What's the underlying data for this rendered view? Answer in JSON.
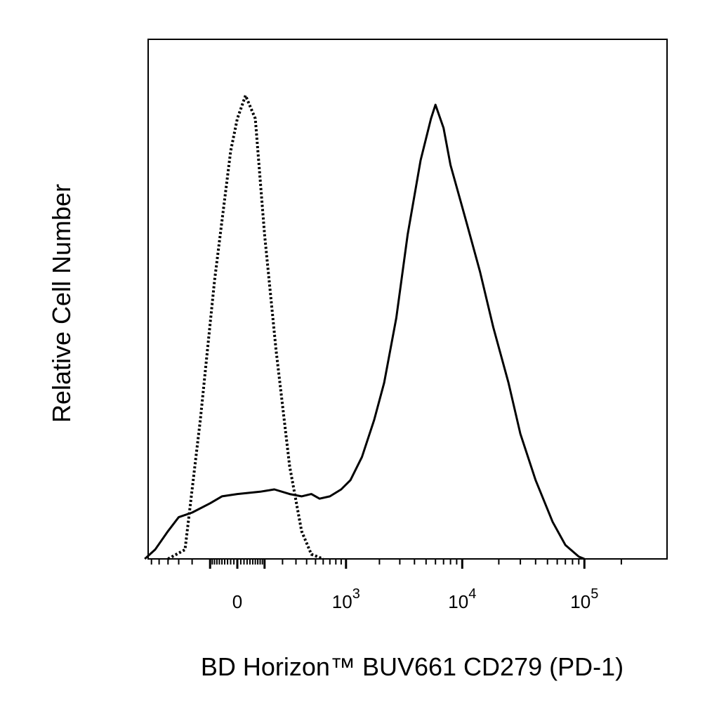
{
  "chart_data": {
    "type": "area",
    "xlabel": "BD Horizon™ BUV661 CD279 (PD-1)",
    "ylabel": "Relative Cell Number",
    "x_scale": "biexponential",
    "x_tick_labels": [
      {
        "base": "0",
        "exp": ""
      },
      {
        "base": "10",
        "exp": "3"
      },
      {
        "base": "10",
        "exp": "4"
      },
      {
        "base": "10",
        "exp": "5"
      }
    ],
    "grid": false,
    "legend": "none",
    "series": [
      {
        "line_style": "dotted",
        "points": [
          [
            -400,
            0
          ],
          [
            -250,
            0.02
          ],
          [
            -150,
            0.3
          ],
          [
            -80,
            0.6
          ],
          [
            -20,
            0.88
          ],
          [
            0,
            0.95
          ],
          [
            25,
            1.0
          ],
          [
            60,
            0.95
          ],
          [
            100,
            0.7
          ],
          [
            160,
            0.45
          ],
          [
            250,
            0.2
          ],
          [
            350,
            0.06
          ],
          [
            450,
            0.01
          ],
          [
            600,
            0
          ]
        ]
      },
      {
        "line_style": "solid",
        "points": [
          [
            -700,
            0
          ],
          [
            -550,
            0.02
          ],
          [
            -400,
            0.06
          ],
          [
            -300,
            0.09
          ],
          [
            -200,
            0.1
          ],
          [
            -100,
            0.12
          ],
          [
            -50,
            0.135
          ],
          [
            0,
            0.14
          ],
          [
            80,
            0.145
          ],
          [
            150,
            0.15
          ],
          [
            250,
            0.14
          ],
          [
            350,
            0.135
          ],
          [
            450,
            0.14
          ],
          [
            550,
            0.13
          ],
          [
            700,
            0.135
          ],
          [
            900,
            0.15
          ],
          [
            1100,
            0.17
          ],
          [
            1400,
            0.22
          ],
          [
            1800,
            0.3
          ],
          [
            2200,
            0.38
          ],
          [
            2800,
            0.52
          ],
          [
            3500,
            0.7
          ],
          [
            4500,
            0.86
          ],
          [
            5500,
            0.95
          ],
          [
            6000,
            0.98
          ],
          [
            7000,
            0.93
          ],
          [
            8000,
            0.85
          ],
          [
            9500,
            0.78
          ],
          [
            11000,
            0.72
          ],
          [
            14000,
            0.62
          ],
          [
            18000,
            0.5
          ],
          [
            24000,
            0.38
          ],
          [
            30000,
            0.27
          ],
          [
            40000,
            0.17
          ],
          [
            55000,
            0.08
          ],
          [
            70000,
            0.03
          ],
          [
            90000,
            0.005
          ],
          [
            100000,
            0
          ]
        ]
      }
    ]
  }
}
